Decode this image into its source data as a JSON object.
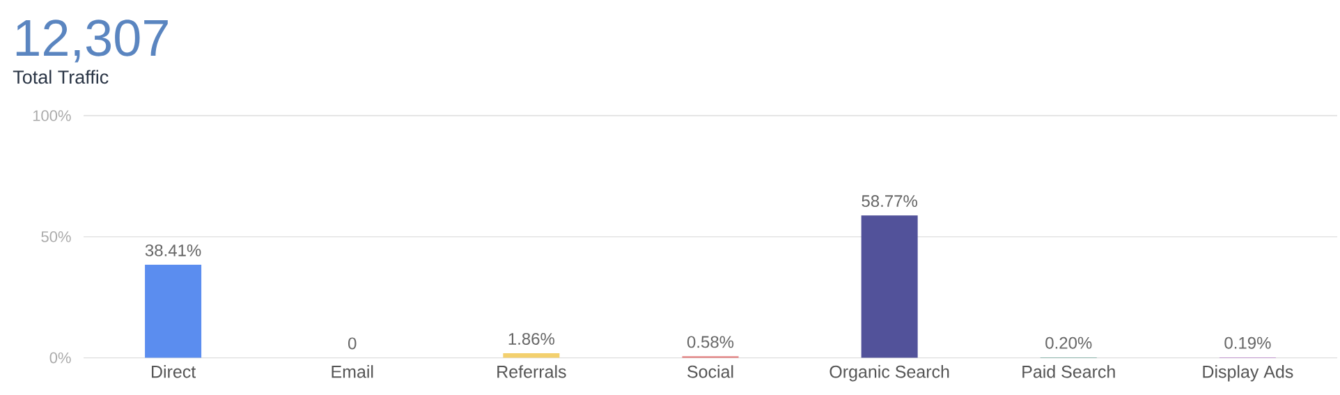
{
  "chart_data": {
    "type": "bar",
    "title": "12,307",
    "subtitle": "Total Traffic",
    "categories": [
      "Direct",
      "Email",
      "Referrals",
      "Social",
      "Organic Search",
      "Paid Search",
      "Display Ads"
    ],
    "values": [
      38.41,
      0,
      1.86,
      0.58,
      58.77,
      0.2,
      0.19
    ],
    "colors": [
      "#5b8def",
      "#7fcdd1",
      "#f3d06e",
      "#e07272",
      "#52529a",
      "#3e8e7a",
      "#a855c0"
    ],
    "value_labels": [
      "38.41%",
      "0",
      "1.86%",
      "0.58%",
      "58.77%",
      "0.20%",
      "0.19%"
    ],
    "ylim": [
      0,
      100
    ],
    "yticks": [
      {
        "value": 0,
        "label": "0%"
      },
      {
        "value": 50,
        "label": "50%"
      },
      {
        "value": 100,
        "label": "100%"
      }
    ],
    "grid": "y"
  }
}
